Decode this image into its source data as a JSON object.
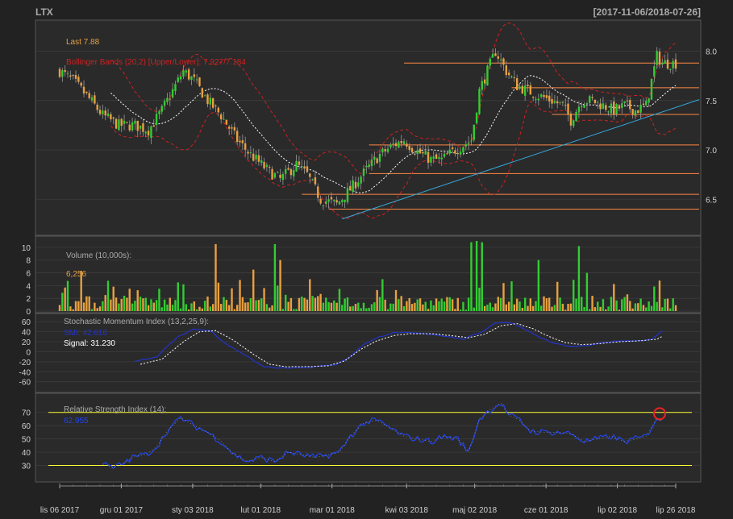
{
  "header": {
    "symbol": "LTX",
    "date_range": "[2017-11-06/2018-07-26]"
  },
  "colors": {
    "background": "#222222",
    "panel": "#2a2a2a",
    "up": "#33cc33",
    "down": "#e8a040",
    "bbands": "#cc2222",
    "ma": "#ffffff",
    "trend": "#33aadd",
    "hlines": "#ff8844",
    "smi": "#2233cc",
    "signal": "#ffffff",
    "rsi": "#2244ee",
    "rsi_bounds": "#ffff33",
    "highlight": "#ee2222"
  },
  "labels": {
    "last": "Last 7.88",
    "bbands": "Bollinger Bands (20,2) [Upper/Lower]: 7.927/7.184",
    "volume": "Volume (10,000s):",
    "volume_value": "6,256",
    "smi": "Stochastic Momentum Index (13,2,25,9):",
    "smi_value": "SMI: 42.616",
    "signal_value": "Signal: 31.230",
    "rsi": "Relative Strength Index (14):",
    "rsi_value": "62.955"
  },
  "chart_data": [
    {
      "type": "candlestick",
      "panel": "price",
      "ylim": [
        6.2,
        8.25
      ],
      "yticks": [
        "6.5",
        "7.0",
        "7.5",
        "8.0"
      ],
      "xticks": [
        "lis 06 2017",
        "gru 01 2017",
        "sty 03 2018",
        "lut 01 2018",
        "mar 01 2018",
        "kwi 03 2018",
        "maj 02 2018",
        "cze 01 2018",
        "lip 02 2018",
        "lip 26 2018"
      ],
      "close_anchors": [
        [
          0,
          7.8
        ],
        [
          5,
          7.7
        ],
        [
          10,
          7.55
        ],
        [
          16,
          7.35
        ],
        [
          22,
          7.25
        ],
        [
          28,
          7.25
        ],
        [
          33,
          7.2
        ],
        [
          38,
          7.4
        ],
        [
          42,
          7.6
        ],
        [
          46,
          7.8
        ],
        [
          50,
          7.7
        ],
        [
          55,
          7.5
        ],
        [
          60,
          7.35
        ],
        [
          66,
          7.1
        ],
        [
          71,
          6.95
        ],
        [
          77,
          6.8
        ],
        [
          82,
          6.7
        ],
        [
          88,
          6.85
        ],
        [
          92,
          6.75
        ],
        [
          97,
          6.5
        ],
        [
          103,
          6.45
        ],
        [
          108,
          6.6
        ],
        [
          114,
          6.8
        ],
        [
          119,
          6.95
        ],
        [
          124,
          7.05
        ],
        [
          128,
          7.1
        ],
        [
          132,
          7.0
        ],
        [
          138,
          6.9
        ],
        [
          142,
          6.9
        ],
        [
          147,
          7.0
        ],
        [
          150,
          7.05
        ],
        [
          153,
          7.1
        ],
        [
          156,
          7.6
        ],
        [
          159,
          7.8
        ],
        [
          162,
          8.0
        ],
        [
          166,
          7.8
        ],
        [
          170,
          7.65
        ],
        [
          174,
          7.6
        ],
        [
          178,
          7.55
        ],
        [
          183,
          7.5
        ],
        [
          187,
          7.45
        ],
        [
          190,
          7.3
        ],
        [
          194,
          7.5
        ],
        [
          198,
          7.5
        ],
        [
          202,
          7.45
        ],
        [
          206,
          7.4
        ],
        [
          210,
          7.45
        ],
        [
          214,
          7.4
        ],
        [
          218,
          7.45
        ],
        [
          220,
          7.7
        ],
        [
          222,
          7.95
        ],
        [
          224,
          7.88
        ]
      ],
      "resistance_levels": [
        7.88,
        7.63,
        7.36,
        7.05,
        6.76,
        6.55,
        6.4
      ],
      "trend_line": {
        "from": [
          105,
          6.3
        ],
        "to": [
          229,
          7.51
        ]
      },
      "last": 7.88,
      "bbands_upper_last": 7.927,
      "bbands_lower_last": 7.184
    },
    {
      "type": "bar",
      "panel": "volume",
      "ylim": [
        0,
        11
      ],
      "yticks": [
        "0",
        "2",
        "4",
        "6",
        "8",
        "10"
      ],
      "spikes": [
        [
          8,
          6.3
        ],
        [
          37,
          3.5
        ],
        [
          44,
          4.5
        ],
        [
          58,
          10.5
        ],
        [
          72,
          6.5
        ],
        [
          80,
          10.5
        ],
        [
          82,
          8
        ],
        [
          93,
          5
        ],
        [
          120,
          5
        ],
        [
          134,
          2
        ],
        [
          153,
          10.8
        ],
        [
          155,
          11
        ],
        [
          157,
          10.8
        ],
        [
          178,
          8
        ],
        [
          193,
          10.2
        ],
        [
          196,
          6
        ],
        [
          219,
          1.5
        ],
        [
          224,
          0.6
        ]
      ],
      "last": 6.256
    },
    {
      "type": "line",
      "panel": "smi",
      "ylim": [
        -75,
        70
      ],
      "yticks": [
        "60",
        "40",
        "20",
        "0",
        "-20",
        "-40",
        "-60"
      ],
      "series": [
        {
          "name": "SMI",
          "anchors": [
            [
              28,
              -20
            ],
            [
              36,
              -10
            ],
            [
              44,
              30
            ],
            [
              50,
              45
            ],
            [
              56,
              42
            ],
            [
              62,
              15
            ],
            [
              70,
              -10
            ],
            [
              76,
              -30
            ],
            [
              80,
              -32
            ],
            [
              88,
              -32
            ],
            [
              95,
              -30
            ],
            [
              103,
              -25
            ],
            [
              108,
              -10
            ],
            [
              113,
              15
            ],
            [
              119,
              30
            ],
            [
              124,
              38
            ],
            [
              130,
              38
            ],
            [
              138,
              35
            ],
            [
              145,
              30
            ],
            [
              150,
              25
            ],
            [
              157,
              40
            ],
            [
              162,
              58
            ],
            [
              168,
              58
            ],
            [
              173,
              45
            ],
            [
              178,
              30
            ],
            [
              183,
              18
            ],
            [
              190,
              10
            ],
            [
              196,
              12
            ],
            [
              202,
              18
            ],
            [
              208,
              22
            ],
            [
              214,
              22
            ],
            [
              220,
              24
            ],
            [
              224,
              42
            ]
          ],
          "last": 42.616
        },
        {
          "name": "Signal",
          "anchors": [
            [
              30,
              -25
            ],
            [
              38,
              -15
            ],
            [
              46,
              20
            ],
            [
              52,
              40
            ],
            [
              58,
              42
            ],
            [
              64,
              25
            ],
            [
              72,
              -5
            ],
            [
              78,
              -25
            ],
            [
              84,
              -30
            ],
            [
              92,
              -30
            ],
            [
              100,
              -28
            ],
            [
              106,
              -18
            ],
            [
              112,
              5
            ],
            [
              118,
              22
            ],
            [
              124,
              32
            ],
            [
              130,
              36
            ],
            [
              138,
              36
            ],
            [
              146,
              32
            ],
            [
              152,
              28
            ],
            [
              158,
              35
            ],
            [
              164,
              52
            ],
            [
              170,
              56
            ],
            [
              176,
              46
            ],
            [
              182,
              30
            ],
            [
              188,
              18
            ],
            [
              194,
              14
            ],
            [
              200,
              16
            ],
            [
              208,
              20
            ],
            [
              216,
              22
            ],
            [
              222,
              25
            ],
            [
              224,
              31
            ]
          ],
          "last": 31.23
        }
      ]
    },
    {
      "type": "line",
      "panel": "rsi",
      "ylim": [
        20,
        82
      ],
      "yticks": [
        "30",
        "40",
        "50",
        "60",
        "70"
      ],
      "series": [
        {
          "name": "RSI",
          "anchors": [
            [
              16,
              31
            ],
            [
              20,
              28
            ],
            [
              24,
              32
            ],
            [
              28,
              37
            ],
            [
              32,
              38
            ],
            [
              36,
              44
            ],
            [
              40,
              56
            ],
            [
              45,
              66
            ],
            [
              50,
              60
            ],
            [
              55,
              55
            ],
            [
              60,
              48
            ],
            [
              65,
              38
            ],
            [
              70,
              33
            ],
            [
              75,
              36
            ],
            [
              80,
              33
            ],
            [
              85,
              40
            ],
            [
              90,
              38
            ],
            [
              95,
              36
            ],
            [
              100,
              38
            ],
            [
              104,
              40
            ],
            [
              108,
              52
            ],
            [
              113,
              62
            ],
            [
              118,
              64
            ],
            [
              123,
              58
            ],
            [
              128,
              52
            ],
            [
              133,
              50
            ],
            [
              138,
              48
            ],
            [
              143,
              52
            ],
            [
              148,
              50
            ],
            [
              152,
              40
            ],
            [
              156,
              65
            ],
            [
              160,
              72
            ],
            [
              164,
              77
            ],
            [
              167,
              68
            ],
            [
              171,
              64
            ],
            [
              175,
              56
            ],
            [
              180,
              55
            ],
            [
              185,
              55
            ],
            [
              190,
              54
            ],
            [
              195,
              48
            ],
            [
              200,
              50
            ],
            [
              205,
              52
            ],
            [
              210,
              48
            ],
            [
              214,
              50
            ],
            [
              218,
              52
            ],
            [
              222,
              66
            ],
            [
              224,
              63
            ]
          ],
          "last": 62.955
        }
      ],
      "bounds": [
        70,
        30
      ]
    }
  ]
}
